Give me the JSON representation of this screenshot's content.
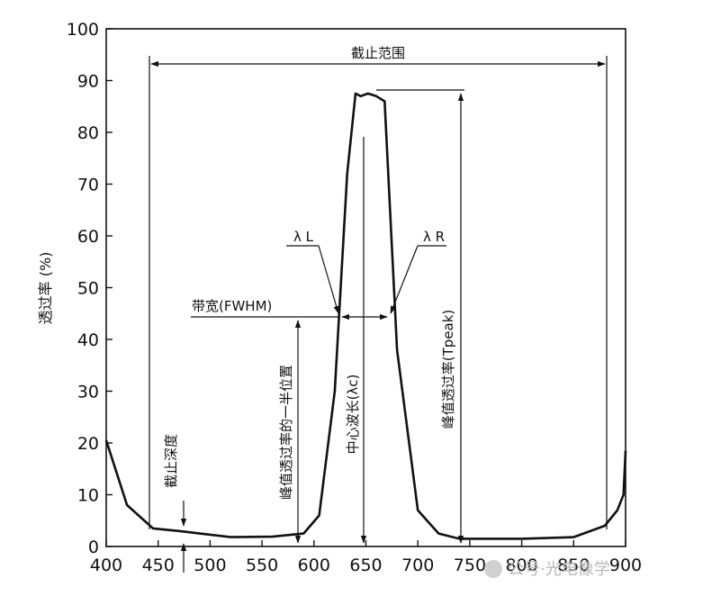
{
  "chart_data": {
    "type": "line",
    "title": "",
    "xlabel": "",
    "ylabel": "透过率 (%)",
    "xlim": [
      400,
      900
    ],
    "ylim": [
      0,
      100
    ],
    "x_ticks": [
      "400",
      "450",
      "500",
      "550",
      "600",
      "650",
      "700",
      "750",
      "800",
      "850",
      "900"
    ],
    "y_ticks": [
      "0",
      "10",
      "20",
      "30",
      "40",
      "50",
      "60",
      "70",
      "80",
      "90",
      "100"
    ],
    "grid": false,
    "series": [
      {
        "x": [
          400,
          420,
          445,
          470,
          490,
          520,
          560,
          590,
          605,
          620,
          632,
          640,
          645,
          652,
          660,
          668,
          680,
          700,
          720,
          740,
          760,
          800,
          850,
          880,
          892,
          898,
          900
        ],
        "y": [
          20.5,
          8,
          3.5,
          3,
          2.5,
          1.8,
          1.9,
          2.5,
          6,
          30,
          72,
          87.5,
          87,
          87.5,
          87,
          86,
          38,
          7,
          2.5,
          1.5,
          1.5,
          1.5,
          1.8,
          4,
          7,
          10,
          18.5
        ]
      }
    ],
    "annotations": {
      "cutoff_range": "截止范围",
      "lambda_l": "λ L",
      "lambda_r": "λ R",
      "bandwidth": "带宽(FWHM)",
      "half_peak": "峰值透过率的一半位置",
      "center_wavelength": "中心波长(λc)",
      "peak_transmittance": "峰值透过率(Tpeak)",
      "cutoff_depth": "截止深度"
    }
  },
  "watermark": "公号·光电像学"
}
